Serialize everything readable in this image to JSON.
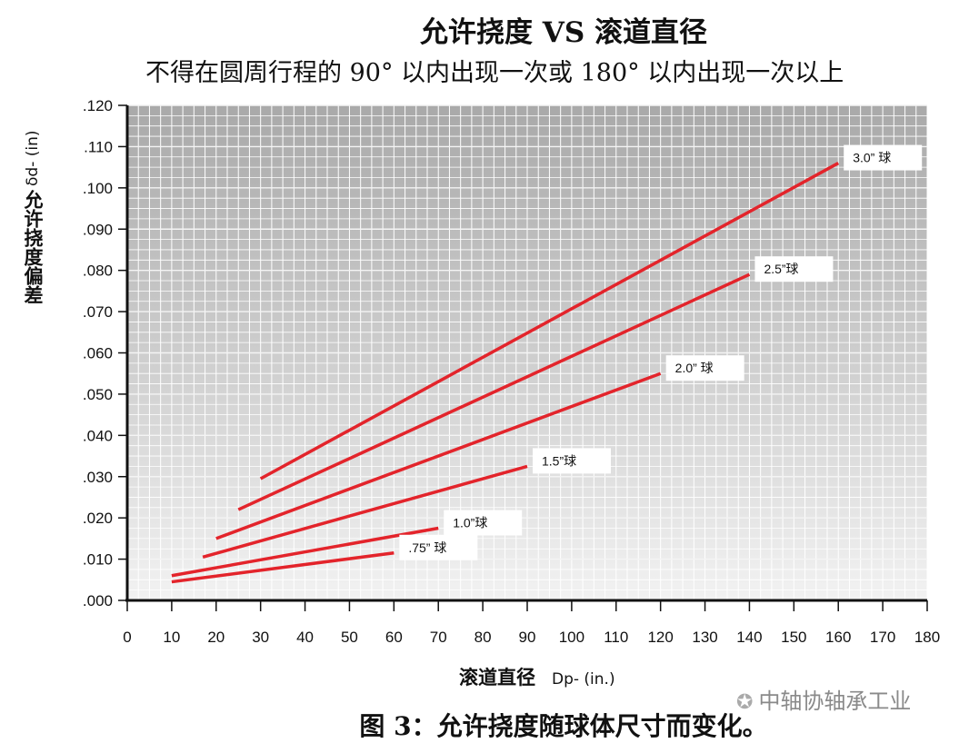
{
  "chart_data": {
    "type": "line",
    "title": "允许挠度 VS 滚道直径",
    "subtitle": "不得在圆周行程的 90° 以内出现一次或 180° 以内出现一次以上",
    "ylabel_symbol": "δd- (in)",
    "ylabel_text": "允许挠度偏差",
    "xlabel_text": "滚道直径",
    "xlabel_symbol": "Dp- (in.)",
    "xlim": [
      0,
      180
    ],
    "ylim": [
      0,
      0.12
    ],
    "xticks": [
      "0",
      "10",
      "20",
      "30",
      "40",
      "50",
      "60",
      "70",
      "80",
      "90",
      "100",
      "110",
      "120",
      "130",
      "140",
      "150",
      "160",
      "170",
      "180"
    ],
    "yticks": [
      ".000",
      ".010",
      ".020",
      ".030",
      ".040",
      ".050",
      ".060",
      ".070",
      ".080",
      ".090",
      ".100",
      ".110",
      ".120"
    ],
    "grid": true,
    "series": [
      {
        "name": "3.0” 球",
        "x": [
          30,
          160
        ],
        "y": [
          0.0295,
          0.106
        ]
      },
      {
        "name": "2.5”球",
        "x": [
          25,
          140
        ],
        "y": [
          0.022,
          0.079
        ]
      },
      {
        "name": "2.0” 球",
        "x": [
          20,
          120
        ],
        "y": [
          0.015,
          0.055
        ]
      },
      {
        "name": "1.5”球",
        "x": [
          17,
          90
        ],
        "y": [
          0.0105,
          0.0325
        ]
      },
      {
        "name": "1.0”球",
        "x": [
          10,
          70
        ],
        "y": [
          0.006,
          0.0175
        ]
      },
      {
        "name": ".75” 球",
        "x": [
          10,
          60
        ],
        "y": [
          0.0045,
          0.0115
        ]
      }
    ],
    "line_color": "#e3242b"
  },
  "caption": "图 3：允许挠度随球体尺寸而变化。",
  "watermark": "中轴协轴承工业"
}
